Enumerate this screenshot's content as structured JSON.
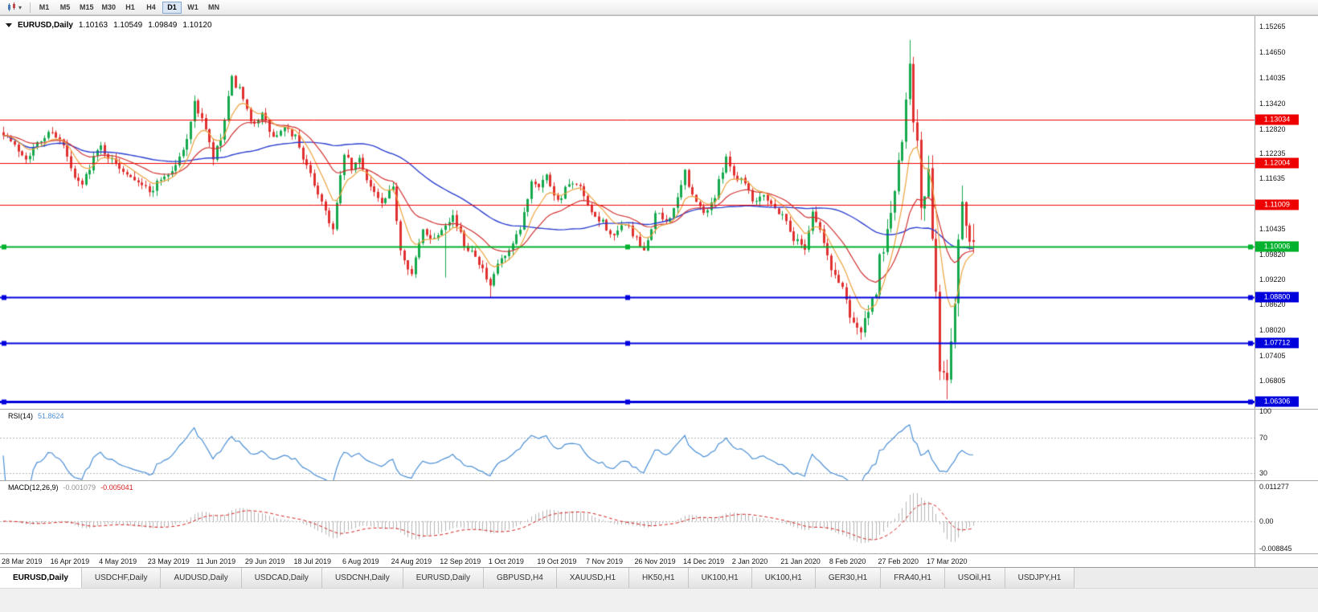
{
  "toolbar": {
    "timeframes": [
      "M1",
      "M5",
      "M15",
      "M30",
      "H1",
      "H4",
      "D1",
      "W1",
      "MN"
    ],
    "active_timeframe": "D1"
  },
  "chart": {
    "symbol_period": "EURUSD,Daily",
    "ohlc": {
      "open": "1.10163",
      "high": "1.10549",
      "low": "1.09849",
      "close": "1.10120"
    },
    "price_ticks": [
      "1.15265",
      "1.14650",
      "1.14035",
      "1.13420",
      "1.12820",
      "1.12235",
      "1.11635",
      "1.11035",
      "1.10435",
      "1.09820",
      "1.09220",
      "1.08620",
      "1.08020",
      "1.07405",
      "1.06805"
    ],
    "y_range": {
      "top": 1.1552,
      "bottom": 1.0613
    },
    "date_labels": [
      "28 Mar 2019",
      "16 Apr 2019",
      "4 May 2019",
      "23 May 2019",
      "11 Jun 2019",
      "29 Jun 2019",
      "18 Jul 2019",
      "6 Aug 2019",
      "24 Aug 2019",
      "12 Sep 2019",
      "1 Oct 2019",
      "19 Oct 2019",
      "7 Nov 2019",
      "26 Nov 2019",
      "14 Dec 2019",
      "2 Jan 2020",
      "21 Jan 2020",
      "8 Feb 2020",
      "27 Feb 2020",
      "17 Mar 2020"
    ],
    "levels": [
      {
        "price": 1.13034,
        "label": "1.13034",
        "color": "#ee0000",
        "width": 1,
        "handles": false
      },
      {
        "price": 1.12004,
        "label": "1.12004",
        "color": "#ee0000",
        "width": 1,
        "handles": false
      },
      {
        "price": 1.11009,
        "label": "1.11009",
        "color": "#ee0000",
        "width": 1,
        "handles": false
      },
      {
        "price": 1.10006,
        "label": "1.10006",
        "color": "#00b22d",
        "width": 2,
        "handles": true
      },
      {
        "price": 1.088,
        "label": "1.08800",
        "color": "#0000dd",
        "width": 2,
        "handles": true
      },
      {
        "price": 1.07712,
        "label": "1.07712",
        "color": "#0000dd",
        "width": 2,
        "handles": true
      },
      {
        "price": 1.06306,
        "label": "1.06306",
        "color": "#0000dd",
        "width": 3,
        "handles": true
      }
    ],
    "colors": {
      "up": "#14a94c",
      "down": "#e03030",
      "ma_fast": "#eda13c",
      "ma_mid": "#d03030",
      "ma_slow": "#2b3fd0",
      "background": "#ffffff"
    }
  },
  "rsi": {
    "label": "RSI(14)",
    "value": "51.8624",
    "scale_ticks": [
      {
        "v": 100,
        "label": "100"
      },
      {
        "v": 70,
        "label": "70"
      },
      {
        "v": 30,
        "label": "30"
      }
    ],
    "levels": [
      70,
      30
    ],
    "line_color": "#4b8fd5"
  },
  "macd": {
    "label": "MACD(12,26,9)",
    "value_main": "-0.001079",
    "value_signal": "-0.005041",
    "scale_ticks": [
      {
        "v": 0.011277,
        "label": "0.011277"
      },
      {
        "v": 0,
        "label": "0.00"
      },
      {
        "v": -0.008845,
        "label": "-0.008845"
      }
    ],
    "histogram_color": "#b5b5b5",
    "signal_color": "#d02020"
  },
  "tabs": {
    "active_index": 0,
    "items": [
      "EURUSD,Daily",
      "USDCHF,Daily",
      "AUDUSD,Daily",
      "USDCAD,Daily",
      "USDCNH,Daily",
      "EURUSD,Daily",
      "GBPUSD,H4",
      "XAUUSD,H1",
      "HK50,H1",
      "UK100,H1",
      "UK100,H1",
      "GER30,H1",
      "FRA40,H1",
      "USOil,H1",
      "USDJPY,H1"
    ]
  },
  "chart_data": {
    "type": "candlestick",
    "symbol": "EURUSD",
    "timeframe": "Daily",
    "bars": 260,
    "seed": 7,
    "anchors": [
      [
        0,
        1.1275
      ],
      [
        3,
        1.124
      ],
      [
        6,
        1.1215
      ],
      [
        9,
        1.1245
      ],
      [
        13,
        1.128
      ],
      [
        16,
        1.124
      ],
      [
        19,
        1.116
      ],
      [
        21,
        1.1148
      ],
      [
        24,
        1.1215
      ],
      [
        26,
        1.124
      ],
      [
        29,
        1.1205
      ],
      [
        32,
        1.1185
      ],
      [
        36,
        1.116
      ],
      [
        39,
        1.113
      ],
      [
        42,
        1.1165
      ],
      [
        45,
        1.118
      ],
      [
        48,
        1.123
      ],
      [
        51,
        1.134
      ],
      [
        53,
        1.131
      ],
      [
        56,
        1.121
      ],
      [
        58,
        1.1255
      ],
      [
        61,
        1.14
      ],
      [
        63,
        1.1375
      ],
      [
        66,
        1.1295
      ],
      [
        69,
        1.1315
      ],
      [
        72,
        1.126
      ],
      [
        75,
        1.128
      ],
      [
        78,
        1.1265
      ],
      [
        81,
        1.119
      ],
      [
        85,
        1.111
      ],
      [
        88,
        1.104
      ],
      [
        91,
        1.1225
      ],
      [
        93,
        1.1185
      ],
      [
        95,
        1.121
      ],
      [
        98,
        1.1145
      ],
      [
        101,
        1.11
      ],
      [
        104,
        1.114
      ],
      [
        106,
        1.0995
      ],
      [
        109,
        1.0935
      ],
      [
        112,
        1.104
      ],
      [
        115,
        1.102
      ],
      [
        118,
        1.106
      ],
      [
        120,
        1.1075
      ],
      [
        123,
        1.1005
      ],
      [
        126,
        1.0985
      ],
      [
        128,
        1.0945
      ],
      [
        130,
        1.09
      ],
      [
        132,
        1.096
      ],
      [
        135,
        1.0985
      ],
      [
        138,
        1.104
      ],
      [
        141,
        1.116
      ],
      [
        143,
        1.115
      ],
      [
        145,
        1.117
      ],
      [
        148,
        1.111
      ],
      [
        151,
        1.115
      ],
      [
        154,
        1.114
      ],
      [
        157,
        1.1075
      ],
      [
        160,
        1.106
      ],
      [
        163,
        1.102
      ],
      [
        166,
        1.106
      ],
      [
        169,
        1.1015
      ],
      [
        171,
        1.0985
      ],
      [
        174,
        1.108
      ],
      [
        177,
        1.106
      ],
      [
        180,
        1.111
      ],
      [
        182,
        1.118
      ],
      [
        184,
        1.112
      ],
      [
        187,
        1.108
      ],
      [
        190,
        1.112
      ],
      [
        193,
        1.122
      ],
      [
        195,
        1.117
      ],
      [
        198,
        1.116
      ],
      [
        200,
        1.111
      ],
      [
        203,
        1.113
      ],
      [
        206,
        1.109
      ],
      [
        208,
        1.108
      ],
      [
        211,
        1.102
      ],
      [
        214,
        1.1
      ],
      [
        216,
        1.1085
      ],
      [
        218,
        1.104
      ],
      [
        221,
        1.0945
      ],
      [
        224,
        1.0905
      ],
      [
        226,
        1.084
      ],
      [
        229,
        1.0795
      ],
      [
        231,
        1.085
      ],
      [
        233,
        1.088
      ],
      [
        234,
        1.0975
      ],
      [
        236,
        1.103
      ],
      [
        238,
        1.114
      ],
      [
        240,
        1.124
      ],
      [
        241,
        1.136
      ],
      [
        242,
        1.145
      ],
      [
        243,
        1.131
      ],
      [
        244,
        1.127
      ],
      [
        245,
        1.109
      ],
      [
        246,
        1.111
      ],
      [
        247,
        1.118
      ],
      [
        248,
        1.1
      ],
      [
        249,
        1.091
      ],
      [
        250,
        1.07
      ],
      [
        251,
        1.069
      ],
      [
        252,
        1.0685
      ],
      [
        253,
        1.079
      ],
      [
        254,
        1.087
      ],
      [
        255,
        1.103
      ],
      [
        256,
        1.111
      ],
      [
        257,
        1.105
      ],
      [
        258,
        1.103
      ],
      [
        259,
        1.1012
      ]
    ],
    "key_bars": [
      {
        "bar": 61,
        "high": 1.1412
      },
      {
        "bar": 118,
        "low": 1.0927
      },
      {
        "bar": 130,
        "low": 1.0879
      },
      {
        "bar": 229,
        "low": 1.0778
      },
      {
        "bar": 242,
        "high": 1.1495
      },
      {
        "bar": 252,
        "low": 1.0636
      },
      {
        "bar": 256,
        "high": 1.1147
      },
      {
        "bar": 259,
        "open": 1.10163,
        "high": 1.10549,
        "low": 1.09849,
        "close": 1.1012
      }
    ],
    "moving_averages": [
      {
        "type": "ema",
        "period": 8,
        "color": "#eda13c"
      },
      {
        "type": "ema",
        "period": 21,
        "color": "#d03030"
      },
      {
        "type": "sma",
        "period": 50,
        "color": "#2b3fd0"
      }
    ],
    "indicators": [
      {
        "name": "RSI",
        "period": 14,
        "current": 51.8624
      },
      {
        "name": "MACD",
        "fast": 12,
        "slow": 26,
        "signal": 9,
        "current_main": -0.001079,
        "current_signal": -0.005041
      }
    ]
  }
}
